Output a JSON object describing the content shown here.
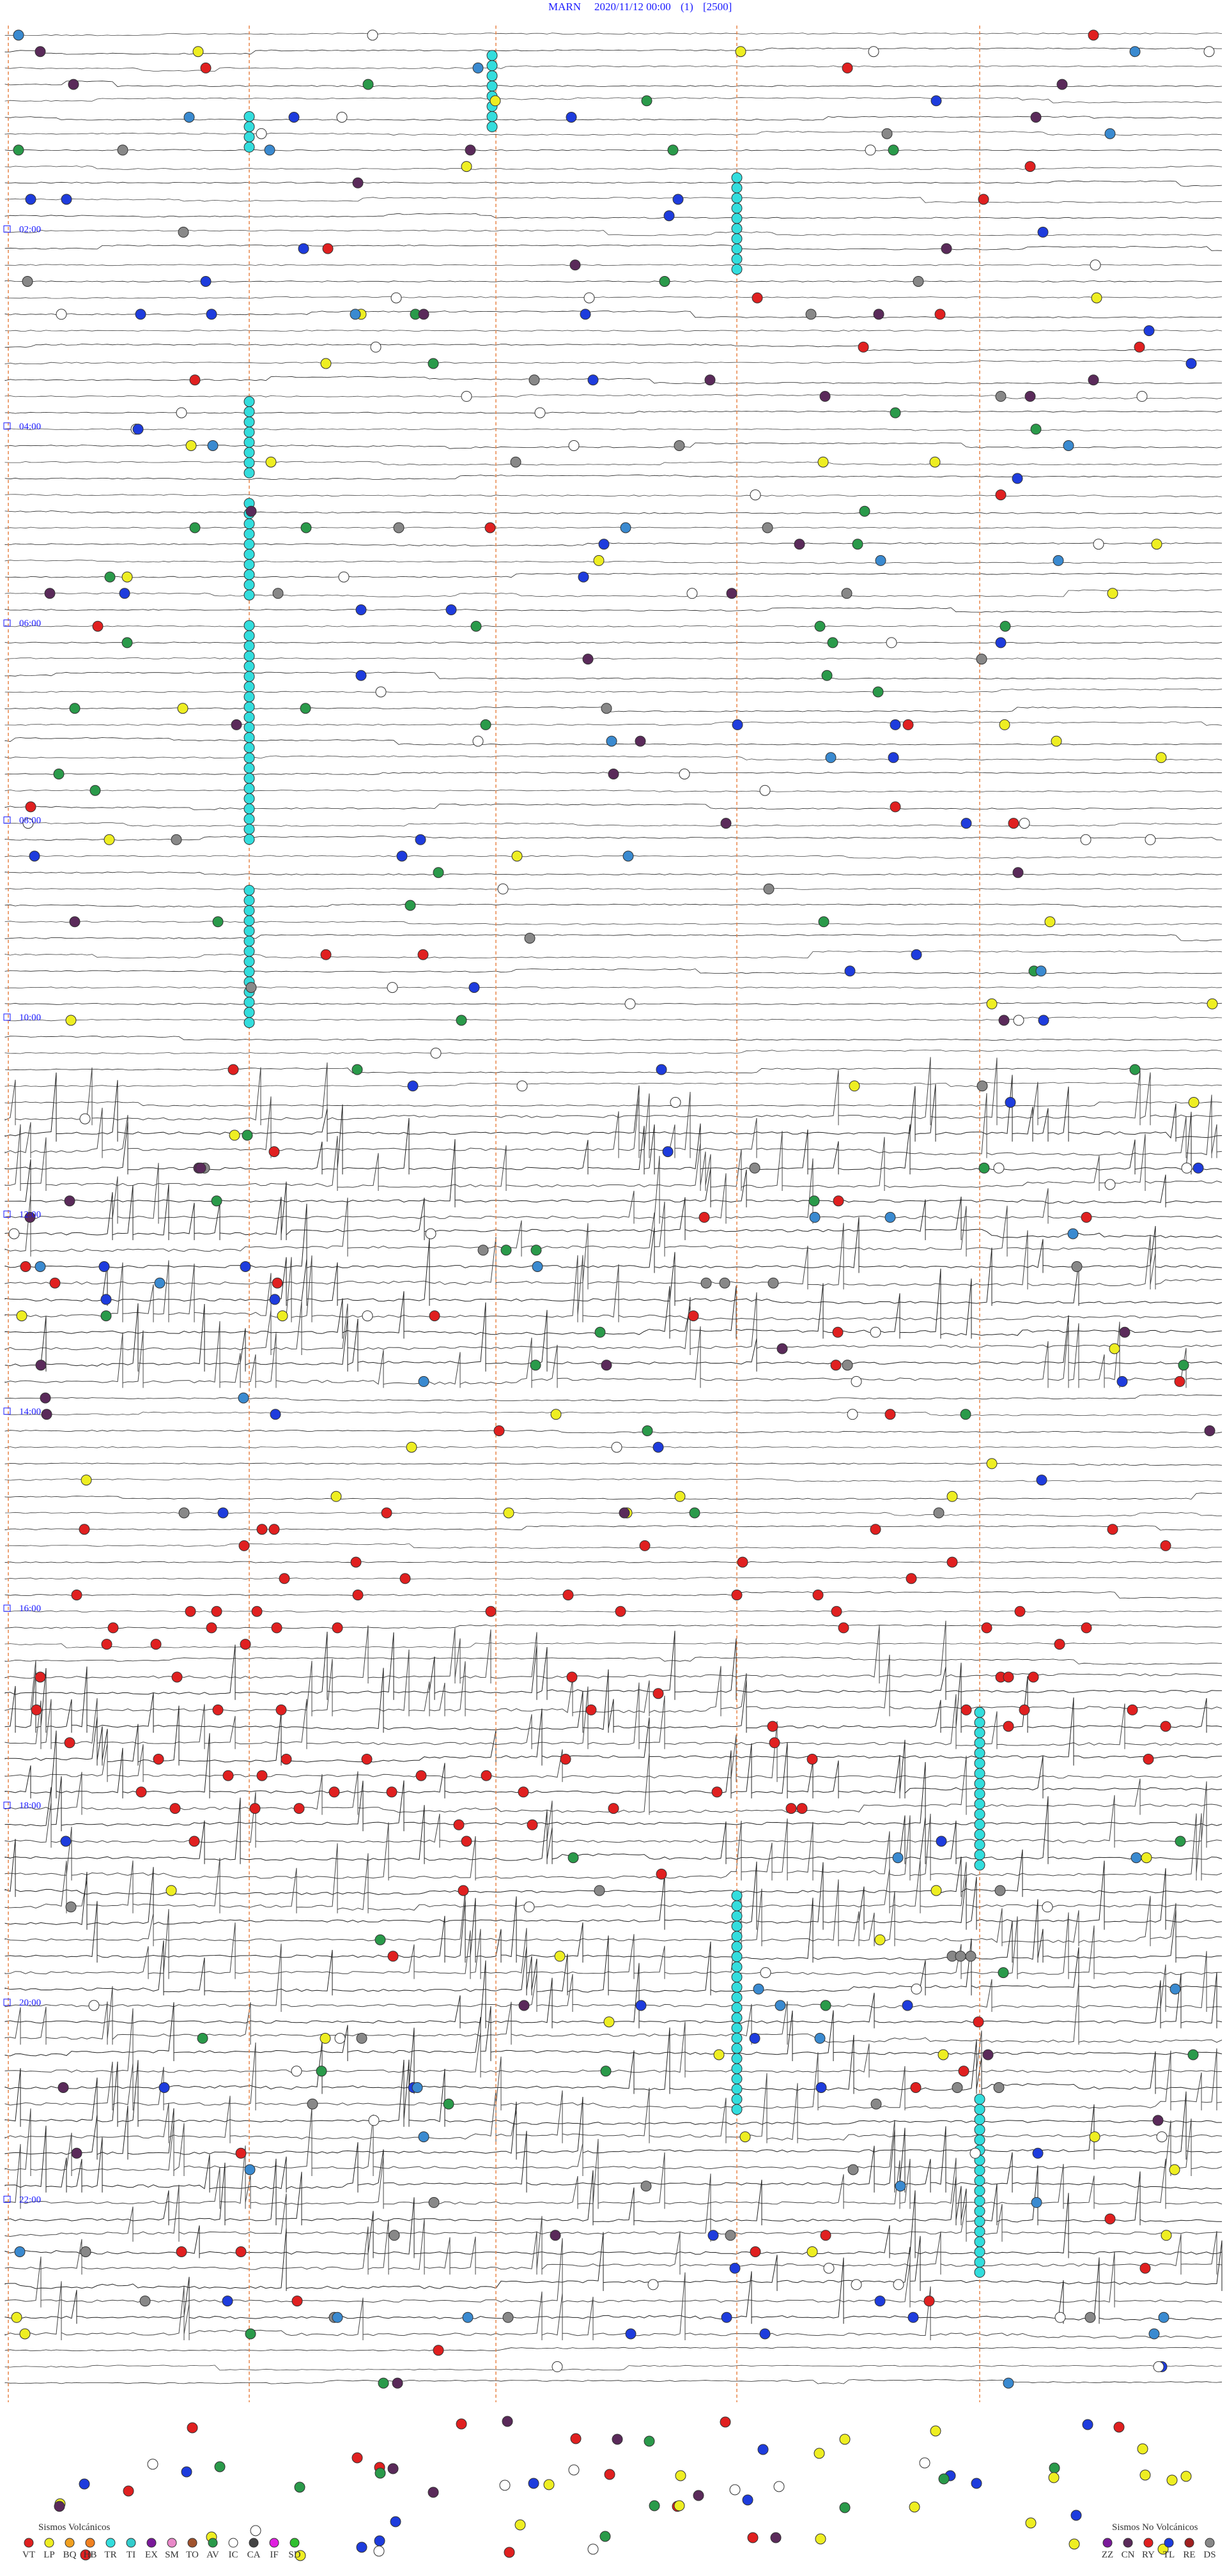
{
  "header": {
    "station": "MARN",
    "datetime": "2020/11/12 00:00",
    "channel": "(1)",
    "scale": "[2500]"
  },
  "time_labels": [
    "02:00",
    "04:00",
    "06:00",
    "08:00",
    "10:00",
    "12:00",
    "14:00",
    "16:00",
    "18:00",
    "20:00",
    "22:00"
  ],
  "legend_volcanic": {
    "title": "Sismos Volcánicos",
    "codes": [
      "VT",
      "LP",
      "BQ",
      "HB",
      "TR",
      "TI",
      "EX",
      "SM",
      "TO",
      "AV",
      "IC",
      "CA",
      "IF",
      "SD"
    ]
  },
  "legend_non_volcanic": {
    "title": "Sismos No Volcánicos",
    "codes": [
      "ZZ",
      "CN",
      "RY",
      "TL",
      "RE",
      "DS"
    ]
  }
}
